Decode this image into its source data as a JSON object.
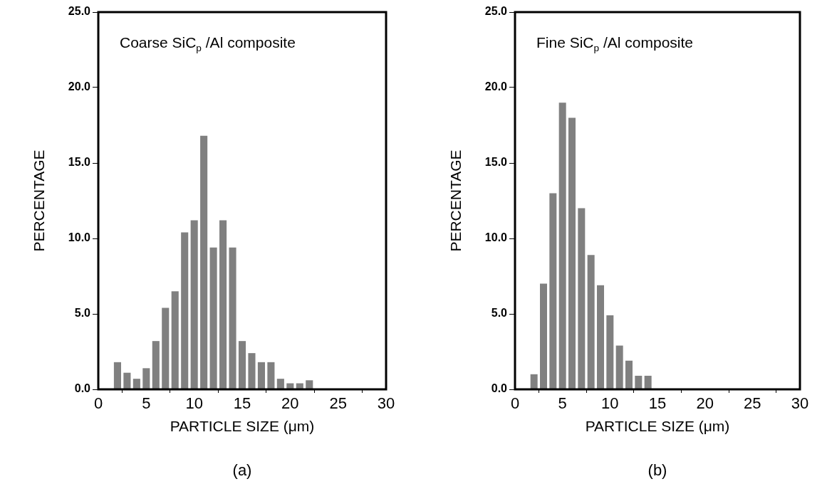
{
  "chart_data": [
    {
      "type": "histogram",
      "xlabel": "PARTICLE SIZE (μm)",
      "ylabel": "PERCENTAGE",
      "annotations": [
        "Coarse SiC$_{p}$ /Al composite",
        "(a)"
      ],
      "color": "#808080",
      "bins": [
        1.5,
        2.5,
        3.5,
        4.5,
        5.5,
        6.5,
        7.5,
        8.5,
        9.5,
        10.5,
        11.5,
        12.5,
        13.5,
        14.5,
        15.5,
        16.5,
        17.5,
        18.5,
        19.5,
        20.5,
        21.5,
        22.5
      ],
      "values": [
        1.8,
        1.1,
        0.7,
        1.4,
        3.2,
        5.4,
        6.5,
        10.4,
        11.2,
        16.8,
        9.4,
        11.2,
        9.4,
        3.2,
        2.4,
        1.8,
        1.8,
        0.7,
        0.4,
        0.4,
        0.6
      ],
      "xlim": [
        0,
        30
      ],
      "xticks": [
        0,
        5,
        10,
        15,
        20,
        25,
        30
      ],
      "ylim": [
        0,
        25
      ],
      "yticks": [
        {
          "value": 0,
          "label": "0.0"
        },
        {
          "value": 5,
          "label": "5.0"
        },
        {
          "value": 10,
          "label": "10.0"
        },
        {
          "value": 15,
          "label": "15.0"
        },
        {
          "value": 20,
          "label": "20.0"
        },
        {
          "value": 25,
          "label": "25.0"
        }
      ],
      "grid": false
    },
    {
      "type": "histogram",
      "xlabel": "PARTICLE SIZE (μm)",
      "ylabel": "PERCENTAGE",
      "annotations": [
        "Fine SiC$_{p}$ /Al composite",
        "(b)"
      ],
      "color": "#808080",
      "bins": [
        1.5,
        2.5,
        3.5,
        4.5,
        5.5,
        6.5,
        7.5,
        8.5,
        9.5,
        10.5,
        11.5,
        12.5,
        13.5,
        14.5
      ],
      "values": [
        1.0,
        7.0,
        13.0,
        19.0,
        18.0,
        12.0,
        8.9,
        6.9,
        4.9,
        2.9,
        1.9,
        0.9,
        0.9
      ],
      "xlim": [
        0,
        30
      ],
      "xticks": [
        0,
        5,
        10,
        15,
        20,
        25,
        30
      ],
      "ylim": [
        0,
        25
      ],
      "yticks": [
        {
          "value": 0,
          "label": "0.0"
        },
        {
          "value": 5,
          "label": "5.0"
        },
        {
          "value": 10,
          "label": "10.0"
        },
        {
          "value": 15,
          "label": "15.0"
        },
        {
          "value": 20,
          "label": "20.0"
        },
        {
          "value": 25,
          "label": "25.0"
        }
      ],
      "grid": false
    }
  ]
}
